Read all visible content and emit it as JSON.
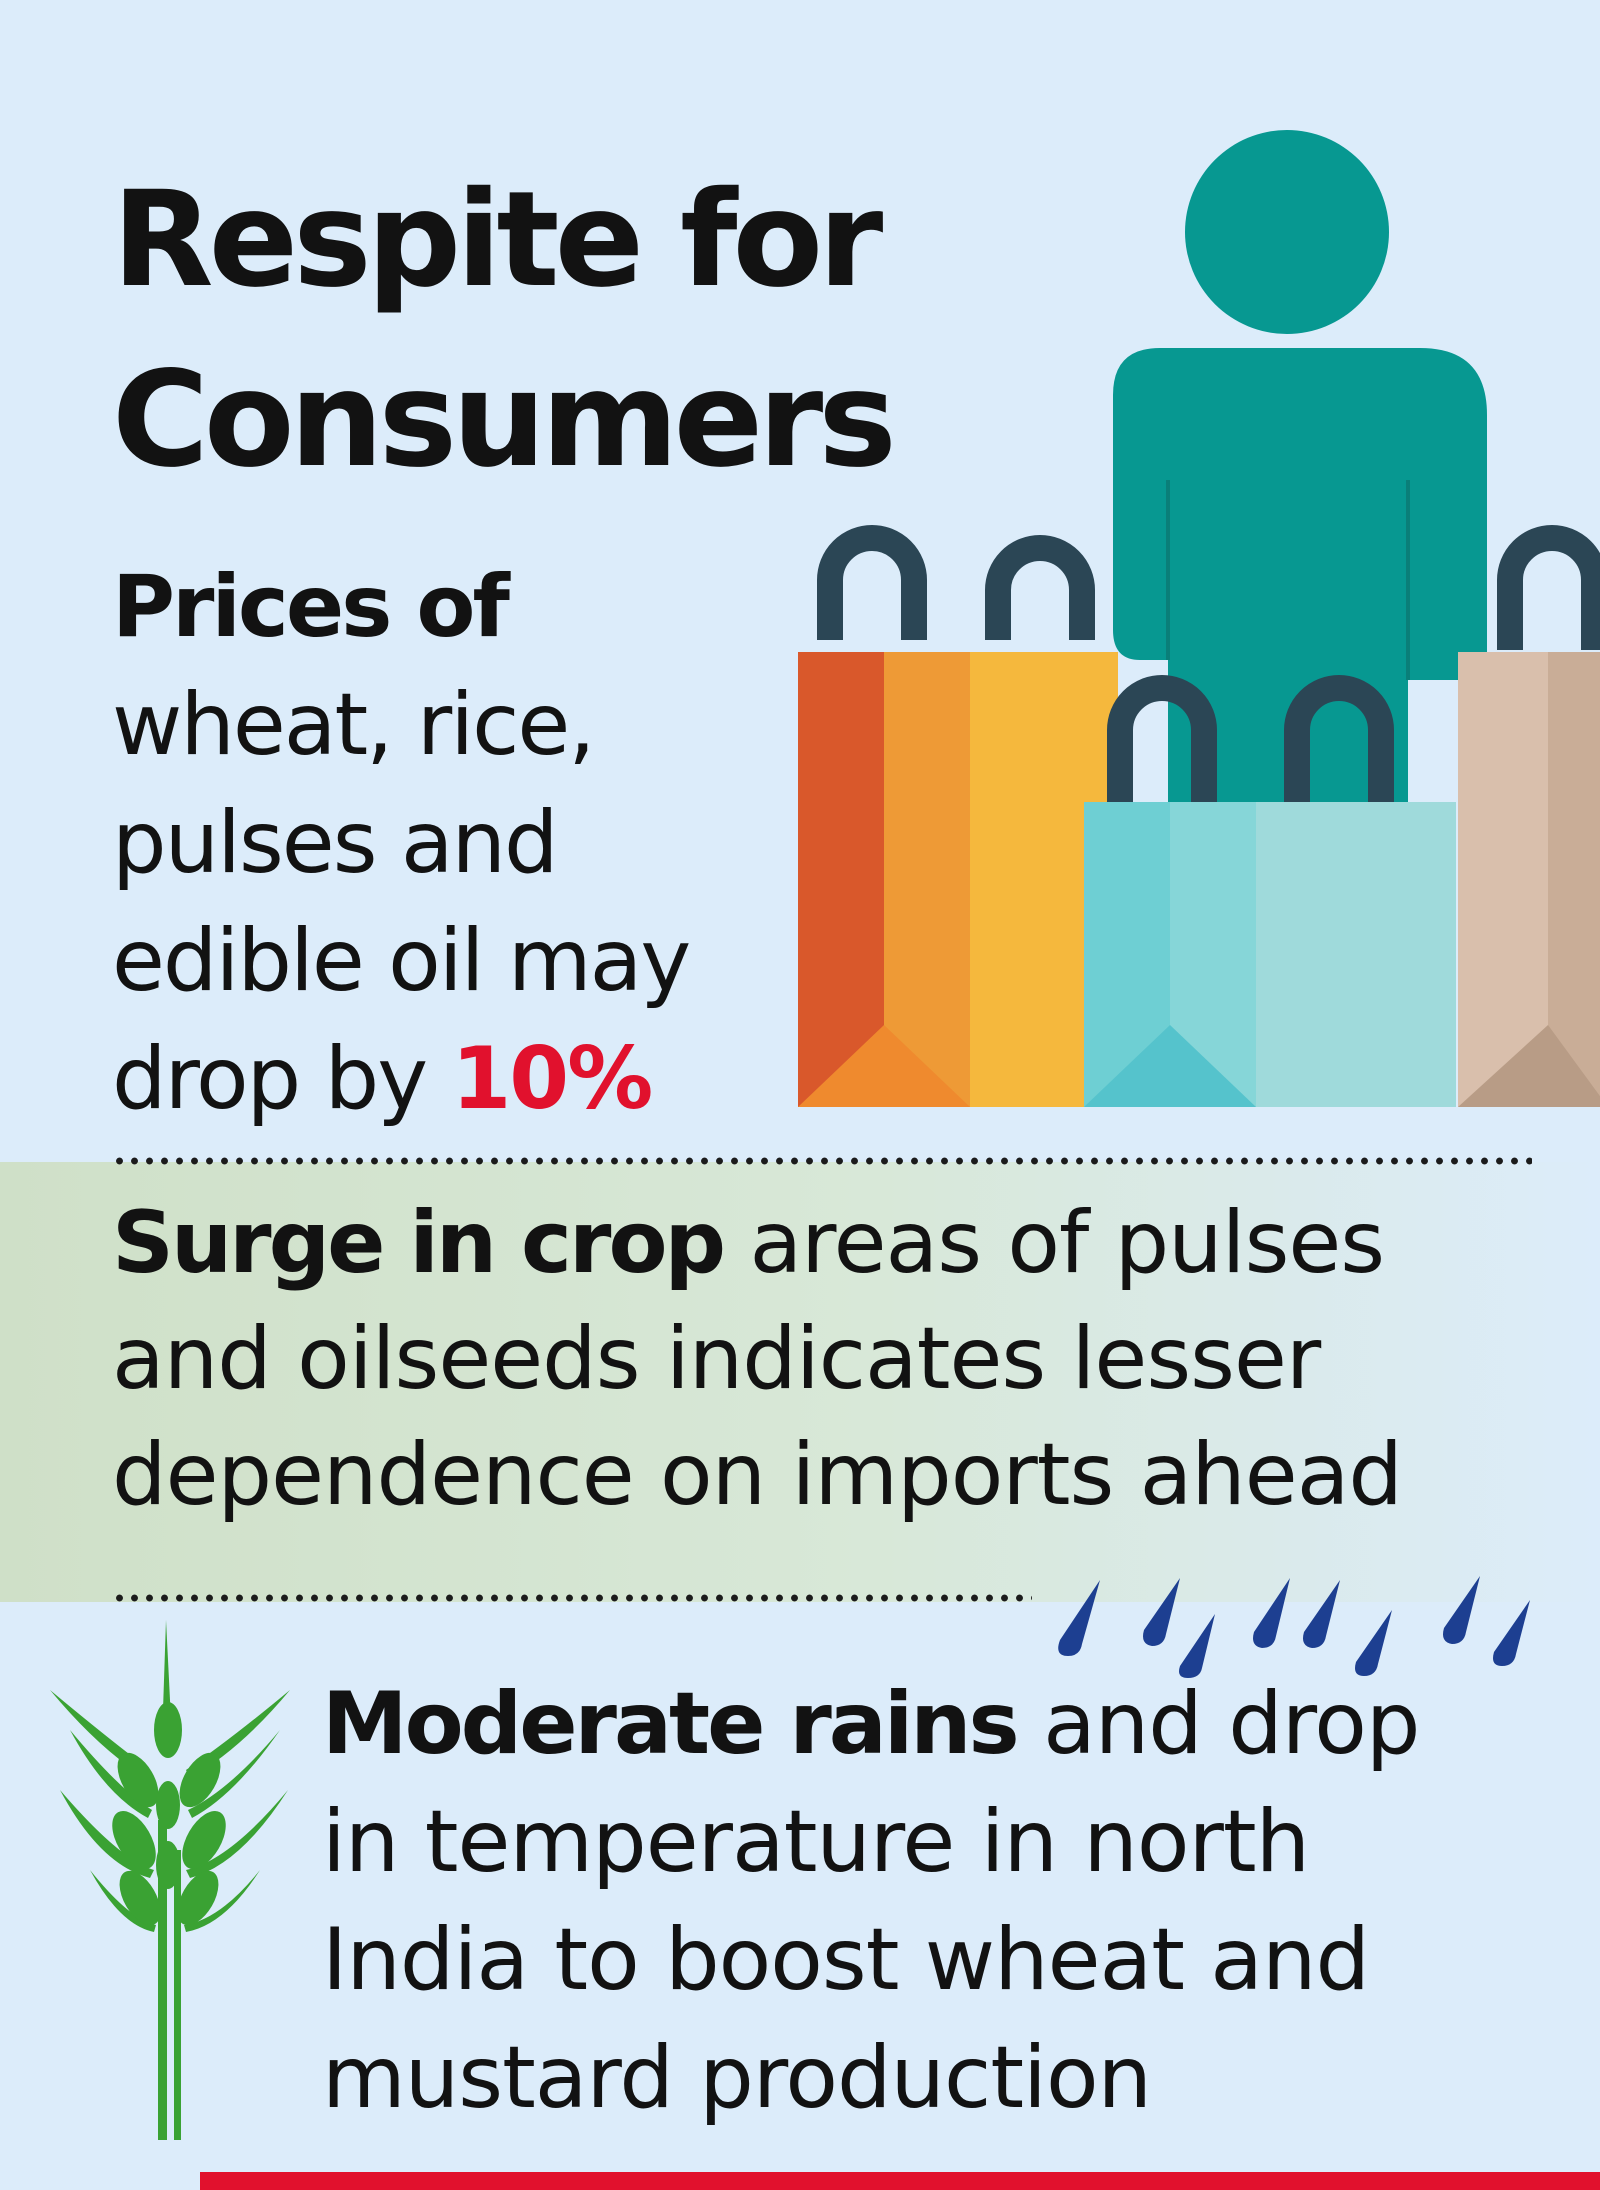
{
  "title": {
    "line1": "Respite for",
    "line2": "Consumers"
  },
  "prices": {
    "lead": "Prices of",
    "line1": "wheat, rice,",
    "line2": "pulses and",
    "line3": "edible oil may",
    "line4": "drop by",
    "percent": "10%"
  },
  "surge": {
    "lead": "Surge in crop",
    "line1_rest": "areas of pulses",
    "line2": "and oilseeds indicates lesser",
    "line3": "dependence on imports ahead"
  },
  "rains": {
    "lead": "Moderate rains",
    "line1_rest": "and drop",
    "line2": "in temperature in north",
    "line3": "India to boost wheat and",
    "line4": "mustard production"
  },
  "colors": {
    "accent_red": "#e1112d",
    "person": "#079891",
    "wheat": "#3aa233",
    "rain": "#1d3f91"
  },
  "icons": [
    "person-icon",
    "shopping-bags-icon",
    "rain-drops-icon",
    "wheat-icon"
  ]
}
